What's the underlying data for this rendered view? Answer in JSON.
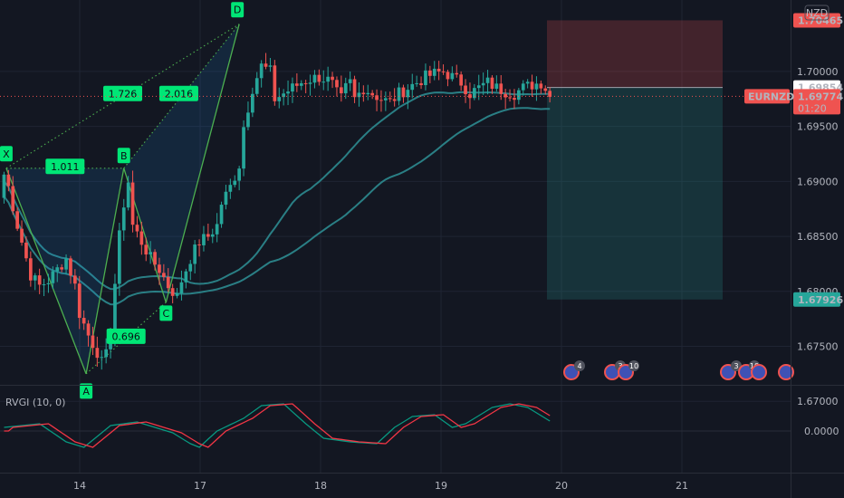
{
  "chart_data": {
    "type": "candlestick",
    "symbol_badge": "NZD",
    "price_axis": {
      "ticks": [
        "1.70000",
        "1.69500",
        "1.69000",
        "1.68500",
        "1.68000",
        "1.67500",
        "1.67000"
      ],
      "ylim": [
        1.6715,
        1.7065
      ]
    },
    "time_axis": {
      "ticks": [
        "14",
        "17",
        "18",
        "19",
        "20",
        "21"
      ]
    },
    "price_labels": {
      "stop": {
        "value": "1.70465",
        "color": "#ef5350"
      },
      "entry": {
        "value": "1.69854",
        "color": "#ffffff"
      },
      "current": {
        "symbol": "EURNZD",
        "value": "1.69774",
        "countdown": "01:20",
        "color": "#ef5350"
      },
      "target": {
        "value": "1.67926",
        "color": "#26a69a"
      }
    },
    "pattern": {
      "points": [
        {
          "label": "X",
          "x": 0.5,
          "y": 1.6912
        },
        {
          "label": "A",
          "x": 18.5,
          "y": 1.6725
        },
        {
          "label": "B",
          "x": 27.0,
          "y": 1.6912
        },
        {
          "label": "C",
          "x": 36.5,
          "y": 1.679
        },
        {
          "label": "D",
          "x": 53.0,
          "y": 1.7043
        }
      ],
      "ratios": [
        "1.011",
        "0.696",
        "1.726",
        "2.016"
      ]
    },
    "indicator": {
      "name": "RVGI (10, 0)",
      "zero_label": "0.0000"
    },
    "event_badges": [
      "4",
      "3",
      "10",
      "3",
      "10"
    ],
    "colors": {
      "up": "#26a69a",
      "down": "#ef5350",
      "pattern": "#4caf50",
      "label_bg": "#00e676",
      "ma": "#2a7f85",
      "rvgi": "#089981",
      "signal": "#f23645"
    }
  }
}
